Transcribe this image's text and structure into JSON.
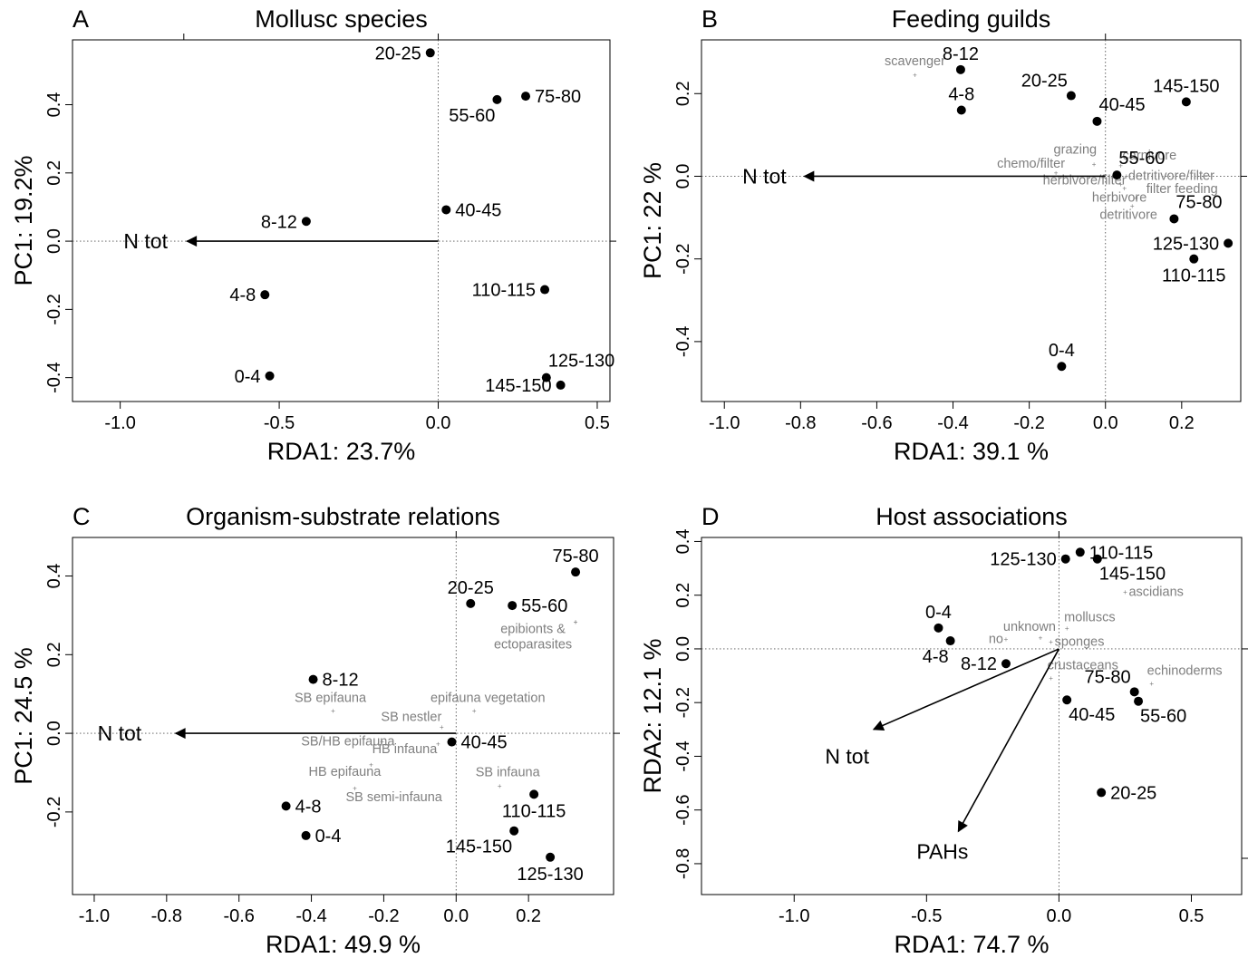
{
  "chart_data": [
    {
      "type": "scatter",
      "letter": "A",
      "title": "Mollusc species",
      "xlabel": "RDA1: 23.7%",
      "ylabel": "PC1: 19.2%",
      "xlim": [
        -1.15,
        0.54
      ],
      "ylim": [
        -0.47,
        0.59
      ],
      "xticks": [
        {
          "v": -1.0,
          "label": "-1.0"
        },
        {
          "v": -0.5,
          "label": "-0.5"
        },
        {
          "v": 0.0,
          "label": "0.0"
        },
        {
          "v": 0.5,
          "label": "0.5"
        }
      ],
      "yticks": [
        {
          "v": -0.4,
          "label": "-0.4"
        },
        {
          "v": -0.2,
          "label": "-0.2"
        },
        {
          "v": 0.0,
          "label": "0.0"
        },
        {
          "v": 0.2,
          "label": "0.2"
        },
        {
          "v": 0.4,
          "label": "0.4"
        }
      ],
      "top_ticks": [
        -0.8
      ],
      "right_ticks": [],
      "grid": false,
      "points": [
        {
          "x": -0.025,
          "y": 0.552,
          "label": "20-25",
          "pos": "left"
        },
        {
          "x": 0.185,
          "y": 0.415,
          "label": "55-60",
          "pos": "bottomleft"
        },
        {
          "x": 0.275,
          "y": 0.425,
          "label": "75-80",
          "pos": "right"
        },
        {
          "x": 0.025,
          "y": 0.092,
          "label": "40-45",
          "pos": "right"
        },
        {
          "x": -0.415,
          "y": 0.058,
          "label": "8-12",
          "pos": "left"
        },
        {
          "x": -0.545,
          "y": -0.157,
          "label": "4-8",
          "pos": "left"
        },
        {
          "x": 0.335,
          "y": -0.142,
          "label": "110-115",
          "pos": "left"
        },
        {
          "x": -0.53,
          "y": -0.395,
          "label": "0-4",
          "pos": "left"
        },
        {
          "x": 0.34,
          "y": -0.4,
          "label": "125-130",
          "pos": "topright"
        },
        {
          "x": 0.385,
          "y": -0.422,
          "label": "145-150",
          "pos": "left"
        }
      ],
      "arrows": [
        {
          "x": -0.79,
          "y": 0.0,
          "label": "N tot",
          "lx": -0.92,
          "ly": 0.0
        }
      ],
      "species": []
    },
    {
      "type": "scatter",
      "letter": "B",
      "title": "Feeding guilds",
      "xlabel": "RDA1: 39.1 %",
      "ylabel": "PC1: 22 %",
      "xlim": [
        -1.06,
        0.355
      ],
      "ylim": [
        -0.545,
        0.33
      ],
      "xticks": [
        {
          "v": -1.0,
          "label": "-1.0"
        },
        {
          "v": -0.8,
          "label": "-0.8"
        },
        {
          "v": -0.6,
          "label": "-0.6"
        },
        {
          "v": -0.4,
          "label": "-0.4"
        },
        {
          "v": -0.2,
          "label": "-0.2"
        },
        {
          "v": 0.0,
          "label": "0.0"
        },
        {
          "v": 0.2,
          "label": "0.2"
        }
      ],
      "yticks": [
        {
          "v": -0.4,
          "label": "-0.4"
        },
        {
          "v": -0.2,
          "label": "-0.2"
        },
        {
          "v": 0.0,
          "label": "0.0"
        },
        {
          "v": 0.2,
          "label": "0.2"
        }
      ],
      "top_ticks": [],
      "right_ticks": [],
      "grid": false,
      "points": [
        {
          "x": -0.38,
          "y": 0.258,
          "label": "8-12",
          "pos": "top"
        },
        {
          "x": -0.378,
          "y": 0.16,
          "label": "4-8",
          "pos": "top"
        },
        {
          "x": -0.09,
          "y": 0.195,
          "label": "20-25",
          "pos": "topleft"
        },
        {
          "x": -0.022,
          "y": 0.133,
          "label": "40-45",
          "pos": "topright"
        },
        {
          "x": 0.212,
          "y": 0.18,
          "label": "145-150",
          "pos": "top"
        },
        {
          "x": 0.03,
          "y": 0.003,
          "label": "55-60",
          "pos": "topright"
        },
        {
          "x": 0.18,
          "y": -0.103,
          "label": "75-80",
          "pos": "topright"
        },
        {
          "x": 0.322,
          "y": -0.162,
          "label": "125-130",
          "pos": "left"
        },
        {
          "x": 0.232,
          "y": -0.2,
          "label": "110-115",
          "pos": "bottom"
        },
        {
          "x": -0.115,
          "y": -0.46,
          "label": "0-4",
          "pos": "top"
        }
      ],
      "arrows": [
        {
          "x": -0.79,
          "y": 0.0,
          "label": "N tot",
          "lx": -0.895,
          "ly": 0.0
        }
      ],
      "species": [
        {
          "x": -0.5,
          "y": 0.245,
          "label": "scavenger",
          "anchor": "middle",
          "dx": 0,
          "dy": -11
        },
        {
          "x": -0.03,
          "y": 0.028,
          "label": "grazing",
          "anchor": "end",
          "dx": 3,
          "dy": -12
        },
        {
          "x": -0.13,
          "y": 0.008,
          "label": "chemo/filter",
          "anchor": "end",
          "dx": 10,
          "dy": -6
        },
        {
          "x": 0.04,
          "y": 0.025,
          "label": "carnivore",
          "anchor": "start",
          "dx": 2,
          "dy": -7
        },
        {
          "x": 0.055,
          "y": 0.0,
          "label": "detritivore/filter",
          "anchor": "start",
          "dx": 2,
          "dy": 4
        },
        {
          "x": 0.04,
          "y": -0.02,
          "label": "herbivore/filter",
          "anchor": "end",
          "dx": 6,
          "dy": 0
        },
        {
          "x": 0.05,
          "y": -0.03,
          "label": "filter feeding",
          "anchor": "start",
          "dx": 24,
          "dy": 5
        },
        {
          "x": 0.08,
          "y": -0.053,
          "label": "herbivore",
          "anchor": "end",
          "dx": 12,
          "dy": 4
        },
        {
          "x": 0.07,
          "y": -0.072,
          "label": "detritivore",
          "anchor": "middle",
          "dx": -4,
          "dy": 14
        }
      ]
    },
    {
      "type": "scatter",
      "letter": "C",
      "title": "Organism-substrate relations",
      "xlabel": "RDA1: 49.9 %",
      "ylabel": "PC1: 24.5 %",
      "xlim": [
        -1.06,
        0.435
      ],
      "ylim": [
        -0.41,
        0.498
      ],
      "xticks": [
        {
          "v": -1.0,
          "label": "-1.0"
        },
        {
          "v": -0.8,
          "label": "-0.8"
        },
        {
          "v": -0.6,
          "label": "-0.6"
        },
        {
          "v": -0.4,
          "label": "-0.4"
        },
        {
          "v": -0.2,
          "label": "-0.2"
        },
        {
          "v": 0.0,
          "label": "0.0"
        },
        {
          "v": 0.2,
          "label": "0.2"
        }
      ],
      "yticks": [
        {
          "v": -0.2,
          "label": "-0.2"
        },
        {
          "v": 0.0,
          "label": "0.0"
        },
        {
          "v": 0.2,
          "label": "0.2"
        },
        {
          "v": 0.4,
          "label": "0.4"
        }
      ],
      "top_ticks": [],
      "right_ticks": [],
      "grid": false,
      "points": [
        {
          "x": 0.33,
          "y": 0.41,
          "label": "75-80",
          "pos": "top"
        },
        {
          "x": 0.04,
          "y": 0.33,
          "label": "20-25",
          "pos": "top"
        },
        {
          "x": 0.155,
          "y": 0.325,
          "label": "55-60",
          "pos": "right"
        },
        {
          "x": -0.395,
          "y": 0.137,
          "label": "8-12",
          "pos": "right"
        },
        {
          "x": -0.012,
          "y": -0.022,
          "label": "40-45",
          "pos": "right"
        },
        {
          "x": 0.215,
          "y": -0.155,
          "label": "110-115",
          "pos": "bottom"
        },
        {
          "x": -0.47,
          "y": -0.185,
          "label": "4-8",
          "pos": "right"
        },
        {
          "x": -0.415,
          "y": -0.26,
          "label": "0-4",
          "pos": "right"
        },
        {
          "x": 0.16,
          "y": -0.248,
          "label": "145-150",
          "pos": "bottomleft"
        },
        {
          "x": 0.26,
          "y": -0.315,
          "label": "125-130",
          "pos": "bottom"
        }
      ],
      "arrows": [
        {
          "x": -0.775,
          "y": 0.0,
          "label": "N tot",
          "lx": -0.93,
          "ly": 0.0
        }
      ],
      "species": [
        {
          "x": 0.33,
          "y": 0.283,
          "label": "epibionts &",
          "anchor": "middle",
          "dx": -47,
          "dy": 12
        },
        {
          "x": 0.33,
          "y": 0.283,
          "label": "ectoparasites",
          "anchor": "middle",
          "dx": -47,
          "dy": 29
        },
        {
          "x": 0.05,
          "y": 0.057,
          "label": "epifauna vegetation",
          "anchor": "middle",
          "dx": 15,
          "dy": -10
        },
        {
          "x": -0.34,
          "y": 0.057,
          "label": "SB epifauna",
          "anchor": "middle",
          "dx": -3,
          "dy": -10
        },
        {
          "x": -0.04,
          "y": 0.015,
          "label": "SB nestler",
          "anchor": "end",
          "dx": 0,
          "dy": -7
        },
        {
          "x": -0.205,
          "y": -0.022,
          "label": "SB/HB epifauna",
          "anchor": "end",
          "dx": 14,
          "dy": 4
        },
        {
          "x": -0.05,
          "y": -0.028,
          "label": "HB infauna",
          "anchor": "end",
          "dx": -1,
          "dy": 10
        },
        {
          "x": 0.12,
          "y": -0.135,
          "label": "SB infauna",
          "anchor": "middle",
          "dx": 9,
          "dy": -11
        },
        {
          "x": -0.235,
          "y": -0.08,
          "label": "HB epifauna",
          "anchor": "middle",
          "dx": -29,
          "dy": 12
        },
        {
          "x": -0.28,
          "y": -0.14,
          "label": "SB semi-infauna",
          "anchor": "start",
          "dx": -10,
          "dy": 14
        }
      ]
    },
    {
      "type": "scatter",
      "letter": "D",
      "title": "Host associations",
      "xlabel": "RDA1: 74.7 %",
      "ylabel": "RDA2: 12.1 %",
      "xlim": [
        -1.35,
        0.69
      ],
      "ylim": [
        -0.915,
        0.415
      ],
      "xticks": [
        {
          "v": -1.0,
          "label": "-1.0"
        },
        {
          "v": -0.5,
          "label": "-0.5"
        },
        {
          "v": 0.0,
          "label": "0.0"
        },
        {
          "v": 0.5,
          "label": "0.5"
        }
      ],
      "yticks": [
        {
          "v": -0.8,
          "label": "-0.8"
        },
        {
          "v": -0.6,
          "label": "-0.6"
        },
        {
          "v": -0.4,
          "label": "-0.4"
        },
        {
          "v": -0.2,
          "label": "-0.2"
        },
        {
          "v": 0.0,
          "label": "0.0"
        },
        {
          "v": 0.2,
          "label": "0.2"
        },
        {
          "v": 0.4,
          "label": "0.4"
        }
      ],
      "top_ticks": [],
      "right_ticks": [
        -0.78
      ],
      "grid": false,
      "points": [
        {
          "x": 0.08,
          "y": 0.36,
          "label": "110-115",
          "pos": "right"
        },
        {
          "x": 0.025,
          "y": 0.335,
          "label": "125-130",
          "pos": "left"
        },
        {
          "x": 0.145,
          "y": 0.335,
          "label": "145-150",
          "pos": "bottomright"
        },
        {
          "x": -0.455,
          "y": 0.078,
          "label": "0-4",
          "pos": "top"
        },
        {
          "x": -0.41,
          "y": 0.03,
          "label": "4-8",
          "pos": "bottomleft"
        },
        {
          "x": -0.2,
          "y": -0.055,
          "label": "8-12",
          "pos": "left"
        },
        {
          "x": 0.285,
          "y": -0.16,
          "label": "75-80",
          "pos": "topleft"
        },
        {
          "x": 0.03,
          "y": -0.19,
          "label": "40-45",
          "pos": "bottomright"
        },
        {
          "x": 0.3,
          "y": -0.195,
          "label": "55-60",
          "pos": "bottomright"
        },
        {
          "x": 0.16,
          "y": -0.535,
          "label": "20-25",
          "pos": "right"
        }
      ],
      "arrows": [
        {
          "x": -0.7,
          "y": -0.3,
          "label": "N tot",
          "lx": -0.8,
          "ly": -0.4
        },
        {
          "x": -0.38,
          "y": -0.68,
          "label": "PAHs",
          "lx": -0.44,
          "ly": -0.755
        }
      ],
      "species": [
        {
          "x": 0.25,
          "y": 0.21,
          "label": "ascidians",
          "anchor": "start",
          "dx": 4,
          "dy": 4
        },
        {
          "x": 0.03,
          "y": 0.075,
          "label": "molluscs",
          "anchor": "start",
          "dx": -3,
          "dy": -8
        },
        {
          "x": -0.07,
          "y": 0.04,
          "label": "unknown",
          "anchor": "middle",
          "dx": -12,
          "dy": -8
        },
        {
          "x": -0.2,
          "y": 0.035,
          "label": "no",
          "anchor": "end",
          "dx": -3,
          "dy": 4
        },
        {
          "x": -0.03,
          "y": 0.025,
          "label": "sponges",
          "anchor": "start",
          "dx": 4,
          "dy": 4
        },
        {
          "x": -0.03,
          "y": -0.11,
          "label": "crustaceans",
          "anchor": "start",
          "dx": -4,
          "dy": -10
        },
        {
          "x": 0.35,
          "y": -0.13,
          "label": "echinoderms",
          "anchor": "start",
          "dx": -5,
          "dy": -10
        }
      ]
    }
  ]
}
